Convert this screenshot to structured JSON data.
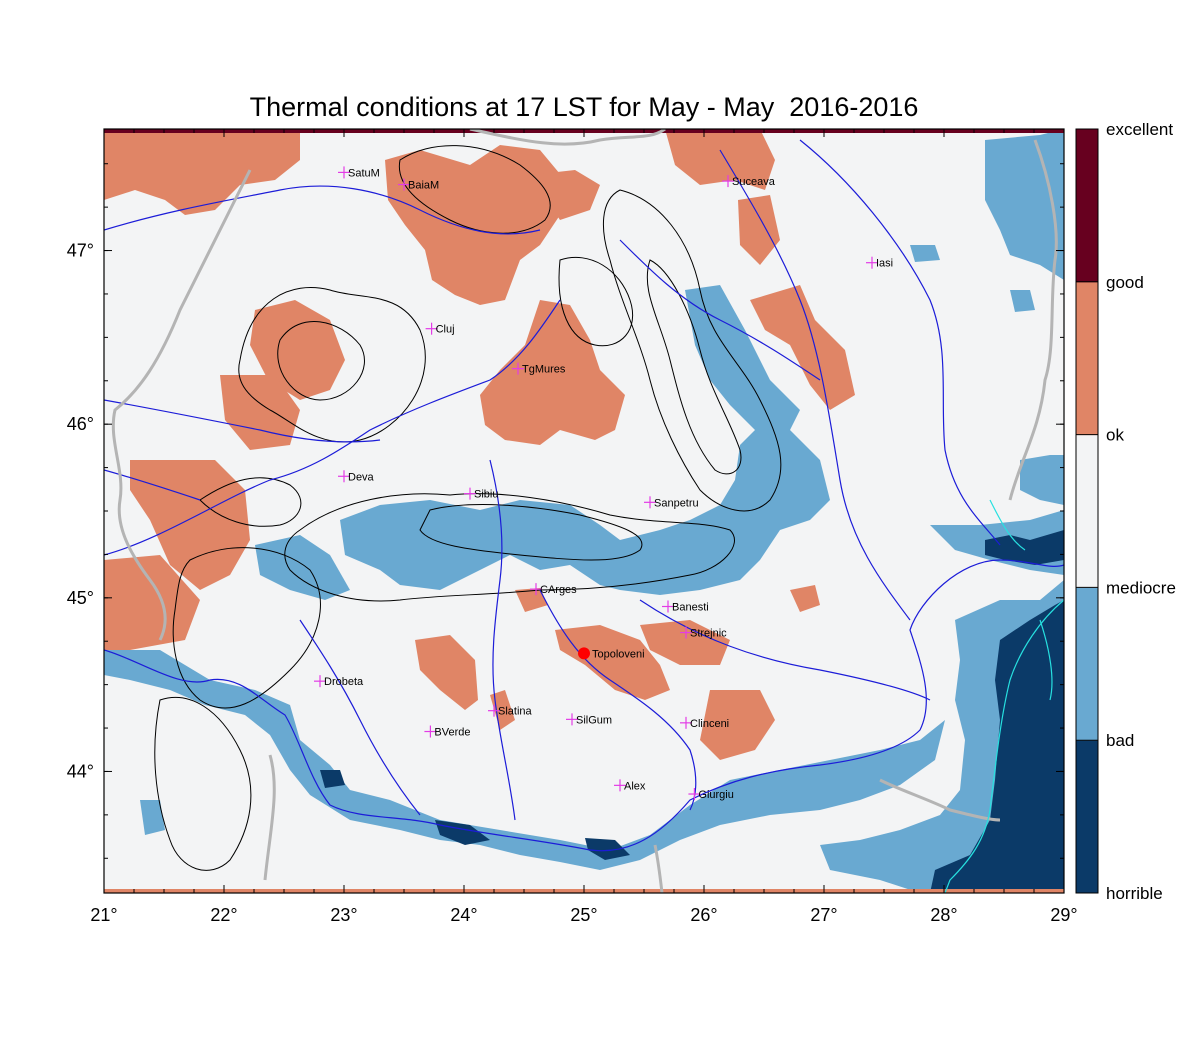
{
  "title": "Thermal conditions at 17 LST for May - May  2016-2016",
  "map": {
    "lon_range": [
      21,
      29
    ],
    "lat_range": [
      43.3,
      47.7
    ],
    "lon_ticks": [
      21,
      22,
      23,
      24,
      25,
      26,
      27,
      28,
      29
    ],
    "lat_ticks": [
      44,
      45,
      46,
      47
    ],
    "lon_tick_labels": [
      "21°",
      "22°",
      "23°",
      "24°",
      "25°",
      "26°",
      "27°",
      "28°",
      "29°"
    ],
    "lat_tick_labels": [
      "44°",
      "45°",
      "46°",
      "47°"
    ],
    "background_class": "mediocre-ok",
    "colors": {
      "horrible": "#0b3a68",
      "bad": "#69a9d1",
      "mediocre": "#f3f4f5",
      "ok": "#e08566",
      "good": "#67001f",
      "contour": "#000000",
      "river": "#1c1cd8",
      "border": "#b4b4b4",
      "lake": "#27e0e0",
      "station_marker": "#e33ce6",
      "highlight_marker": "#ff0000"
    }
  },
  "stations": [
    {
      "name": "SatuM",
      "lon": 23.0,
      "lat": 47.45
    },
    {
      "name": "BaiaM",
      "lon": 23.5,
      "lat": 47.38
    },
    {
      "name": "Suceava",
      "lon": 26.2,
      "lat": 47.4
    },
    {
      "name": "Iasi",
      "lon": 27.4,
      "lat": 46.93
    },
    {
      "name": "Cluj",
      "lon": 23.73,
      "lat": 46.55
    },
    {
      "name": "TgMures",
      "lon": 24.45,
      "lat": 46.32
    },
    {
      "name": "Deva",
      "lon": 23.0,
      "lat": 45.7
    },
    {
      "name": "Sibiu",
      "lon": 24.05,
      "lat": 45.6
    },
    {
      "name": "Sanpetru",
      "lon": 25.55,
      "lat": 45.55
    },
    {
      "name": "CArges",
      "lon": 24.6,
      "lat": 45.05
    },
    {
      "name": "Banesti",
      "lon": 25.7,
      "lat": 44.95
    },
    {
      "name": "Strejnic",
      "lon": 25.85,
      "lat": 44.8
    },
    {
      "name": "Drobeta",
      "lon": 22.8,
      "lat": 44.52
    },
    {
      "name": "Slatina",
      "lon": 24.25,
      "lat": 44.35
    },
    {
      "name": "SilGum",
      "lon": 24.9,
      "lat": 44.3
    },
    {
      "name": "Clinceni",
      "lon": 25.85,
      "lat": 44.28
    },
    {
      "name": "BVerde",
      "lon": 23.72,
      "lat": 44.23
    },
    {
      "name": "Alex",
      "lon": 25.3,
      "lat": 43.92
    },
    {
      "name": "Giurgiu",
      "lon": 25.92,
      "lat": 43.87
    }
  ],
  "highlight_station": {
    "name": "Topoloveni",
    "lon": 25.0,
    "lat": 44.68
  },
  "legend": {
    "classes": [
      {
        "label": "excellent",
        "color": "#67001f"
      },
      {
        "label": "good",
        "color": "#67001f"
      },
      {
        "label": "ok",
        "color": "#e08566"
      },
      {
        "label": "mediocre",
        "color": "#f3f4f5"
      },
      {
        "label": "bad",
        "color": "#69a9d1"
      },
      {
        "label": "horrible",
        "color": "#0b3a68"
      }
    ],
    "bands": [
      {
        "class": "good",
        "color": "#67001f"
      },
      {
        "class": "ok",
        "color": "#e08566"
      },
      {
        "class": "mediocre",
        "color": "#f3f4f5"
      },
      {
        "class": "bad",
        "color": "#69a9d1"
      },
      {
        "class": "horrible",
        "color": "#0b3a68"
      }
    ]
  }
}
